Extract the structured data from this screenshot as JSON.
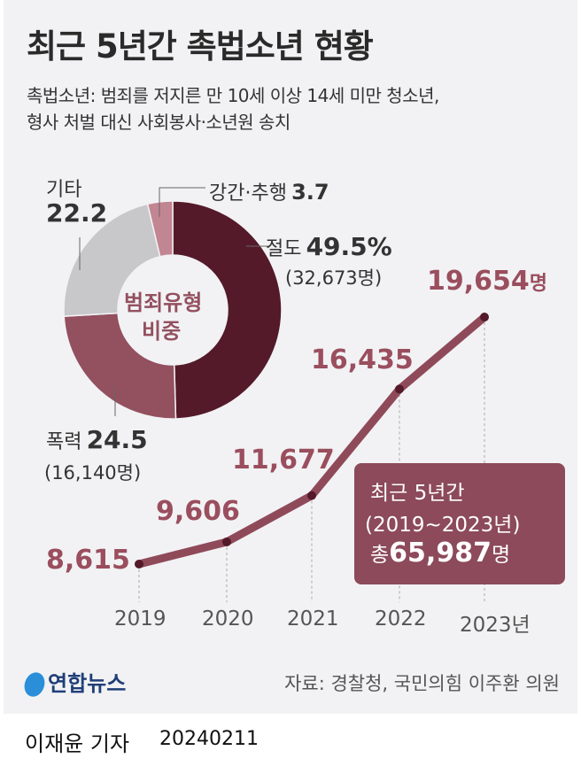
{
  "header": {
    "title": "최근 5년간 촉법소년 현황",
    "subtitle_1": "촉법소년: 범죄를 저지른 만 10세 이상 14세 미만 청소년,",
    "subtitle_2": "형사 처벌 대신 사회봉사·소년원 송치"
  },
  "chart_data": [
    {
      "type": "pie",
      "title": "범죄유형 비중",
      "title_1": "범죄유형",
      "title_2": "비중",
      "slices": [
        {
          "label": "절도",
          "value": 49.5,
          "display": "49.5%",
          "count": "(32,673명)",
          "color": "#541a2a"
        },
        {
          "label": "폭력",
          "value": 24.5,
          "display": "24.5",
          "count": "(16,140명)",
          "color": "#93505f"
        },
        {
          "label": "기타",
          "value": 22.2,
          "display": "22.2",
          "color": "#c8c8ca"
        },
        {
          "label": "강간·추행",
          "value": 3.7,
          "display": "3.7",
          "color": "#c28592"
        }
      ]
    },
    {
      "type": "line",
      "x": [
        "2019",
        "2020",
        "2021",
        "2022",
        "2023"
      ],
      "x_suffix": "년",
      "unit": "명",
      "values": [
        8615,
        9606,
        11677,
        16435,
        19654
      ],
      "labels": [
        "8,615",
        "9,606",
        "11,677",
        "16,435",
        "19,654"
      ],
      "color": "#8f4a5a",
      "label_color": "#9a4e5e"
    }
  ],
  "summary": {
    "line1": "최근 5년간",
    "line2": "(2019~2023년)",
    "prefix": "총",
    "total": "65,987",
    "unit": "명"
  },
  "footer": {
    "logo": "연합뉴스",
    "source": "자료: 경찰청, 국민의힘 이주환 의원",
    "byline": "이재윤 기자",
    "date": "20240211"
  }
}
